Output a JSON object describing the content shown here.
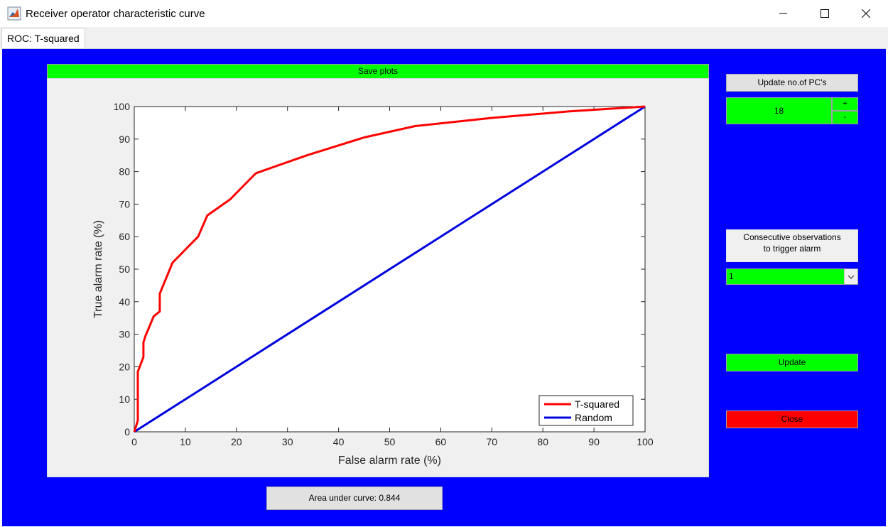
{
  "window": {
    "title": "Receiver operator characteristic curve",
    "icon": "matlab-icon",
    "controls": [
      "minimize-icon",
      "maximize-icon",
      "close-icon"
    ]
  },
  "tabs": [
    {
      "label": "ROC: T-squared",
      "active": true
    }
  ],
  "colors": {
    "figure_bg": "#0000ff",
    "accent_green": "#00ff00",
    "close_red": "#ff0000",
    "curve_red": "#ff0000",
    "random_blue": "#0000dd"
  },
  "plot": {
    "save_label": "Save plots",
    "auc_label": "Area under curve: 0.844"
  },
  "sidebar": {
    "update_pcs_label": "Update no.of PC's",
    "pcs_value": "18",
    "increment_label": "+",
    "decrement_label": "-",
    "consecutive_label_line1": "Consecutive observations",
    "consecutive_label_line2": "to trigger alarm",
    "consecutive_value": "1",
    "update_label": "Update",
    "close_label": "Close"
  },
  "chart_data": {
    "type": "line",
    "xlabel": "False alarm rate (%)",
    "ylabel": "True alarm rate (%)",
    "xlim": [
      0,
      100
    ],
    "ylim": [
      0,
      100
    ],
    "xticks": [
      0,
      10,
      20,
      30,
      40,
      50,
      60,
      70,
      80,
      90,
      100
    ],
    "yticks": [
      0,
      10,
      20,
      30,
      40,
      50,
      60,
      70,
      80,
      90,
      100
    ],
    "grid": false,
    "legend_position": "bottom-right",
    "series": [
      {
        "name": "T-squared",
        "color": "#ff0000",
        "x": [
          0,
          0.5,
          0.7,
          0.7,
          1.8,
          1.8,
          2.2,
          3.8,
          5.0,
          5.0,
          7.5,
          12.5,
          14.3,
          18.8,
          23.8,
          33.8,
          45.0,
          55.0,
          70.0,
          85.0,
          100
        ],
        "y": [
          0,
          2.5,
          3.5,
          18.5,
          23.0,
          27.5,
          29.5,
          35.5,
          37.0,
          42.5,
          52.0,
          60.0,
          66.5,
          71.5,
          79.5,
          85.0,
          90.5,
          94.0,
          96.5,
          98.5,
          100
        ]
      },
      {
        "name": "Random",
        "color": "#0000dd",
        "x": [
          0,
          100
        ],
        "y": [
          0,
          100
        ]
      }
    ]
  }
}
